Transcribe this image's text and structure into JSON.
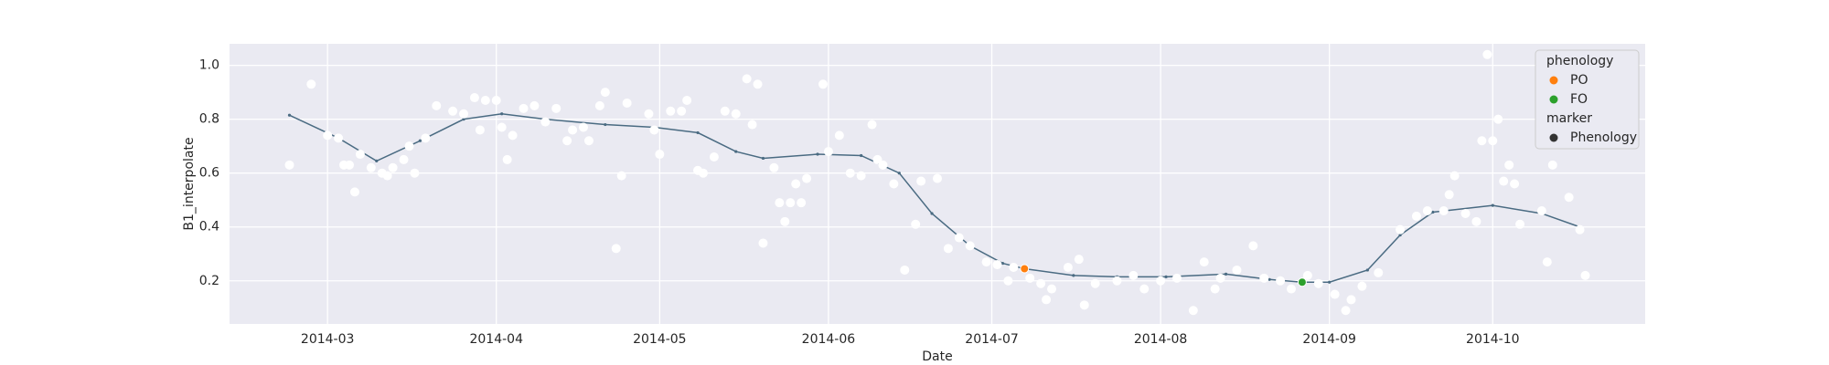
{
  "chart_data": {
    "type": "scatter",
    "x_label": "Date",
    "y_label": "B1_interpolate",
    "xlim": [
      42,
      302
    ],
    "xticks": [
      {
        "value": 60,
        "label": "2014-03"
      },
      {
        "value": 91,
        "label": "2014-04"
      },
      {
        "value": 121,
        "label": "2014-05"
      },
      {
        "value": 152,
        "label": "2014-06"
      },
      {
        "value": 182,
        "label": "2014-07"
      },
      {
        "value": 213,
        "label": "2014-08"
      },
      {
        "value": 244,
        "label": "2014-09"
      },
      {
        "value": 274,
        "label": "2014-10"
      }
    ],
    "ylim": [
      0.04,
      1.08
    ],
    "yticks": [
      0.2,
      0.4,
      0.6,
      0.8,
      {
        "value": 1,
        "label": "1.0"
      }
    ],
    "grid": true,
    "series": [
      {
        "type": "scatter",
        "color": "#ffffff",
        "x": [
          53,
          57,
          60,
          62,
          63,
          64,
          65,
          66,
          68,
          70,
          71,
          72,
          74,
          75,
          76,
          78,
          80,
          83,
          85,
          87,
          88,
          89,
          91,
          92,
          93,
          94,
          96,
          98,
          100,
          102,
          104,
          105,
          107,
          108,
          110,
          111,
          113,
          114,
          115,
          119,
          120,
          121,
          123,
          125,
          126,
          128,
          129,
          131,
          133,
          135,
          137,
          138,
          139,
          140,
          142,
          143,
          144,
          145,
          146,
          147,
          148,
          151,
          152,
          154,
          156,
          158,
          160,
          161,
          162,
          164,
          166,
          168,
          169,
          172,
          174,
          176,
          178,
          181,
          183,
          185,
          186,
          189,
          191,
          192,
          193,
          196,
          198,
          199,
          201,
          205,
          208,
          210,
          213,
          216,
          219,
          221,
          223,
          224,
          227,
          230,
          232,
          235,
          237,
          240,
          242,
          245,
          247,
          248,
          250,
          253,
          257,
          260,
          262,
          265,
          266,
          267,
          269,
          271,
          272,
          273,
          274,
          275,
          276,
          277,
          278,
          279,
          283,
          284,
          285,
          288,
          290,
          291
        ],
        "values": [
          0.63,
          0.93,
          0.74,
          0.73,
          0.63,
          0.63,
          0.53,
          0.67,
          0.62,
          0.6,
          0.59,
          0.62,
          0.65,
          0.7,
          0.6,
          0.73,
          0.85,
          0.83,
          0.82,
          0.88,
          0.76,
          0.87,
          0.87,
          0.77,
          0.65,
          0.74,
          0.84,
          0.85,
          0.79,
          0.84,
          0.72,
          0.76,
          0.77,
          0.72,
          0.85,
          0.9,
          0.32,
          0.59,
          0.86,
          0.82,
          0.76,
          0.67,
          0.83,
          0.83,
          0.87,
          0.61,
          0.6,
          0.66,
          0.83,
          0.82,
          0.95,
          0.78,
          0.93,
          0.34,
          0.62,
          0.49,
          0.42,
          0.49,
          0.56,
          0.49,
          0.58,
          0.93,
          0.68,
          0.74,
          0.6,
          0.59,
          0.78,
          0.65,
          0.63,
          0.56,
          0.24,
          0.41,
          0.57,
          0.58,
          0.32,
          0.36,
          0.33,
          0.27,
          0.26,
          0.2,
          0.25,
          0.21,
          0.19,
          0.13,
          0.17,
          0.25,
          0.28,
          0.11,
          0.19,
          0.2,
          0.22,
          0.17,
          0.2,
          0.21,
          0.09,
          0.27,
          0.17,
          0.21,
          0.24,
          0.33,
          0.21,
          0.2,
          0.17,
          0.22,
          0.19,
          0.15,
          0.09,
          0.13,
          0.18,
          0.23,
          0.39,
          0.44,
          0.46,
          0.46,
          0.52,
          0.59,
          0.45,
          0.42,
          0.72,
          1.04,
          0.72,
          0.8,
          0.57,
          0.63,
          0.56,
          0.41,
          0.46,
          0.27,
          0.63,
          0.51,
          0.39,
          0.22
        ]
      },
      {
        "type": "line",
        "color": "#4a6b82",
        "x": [
          53,
          62,
          69,
          77,
          85,
          92,
          100,
          111,
          120,
          128,
          135,
          140,
          150,
          158,
          165,
          171,
          178,
          184,
          188,
          197,
          205,
          214,
          225,
          233,
          239,
          244,
          251,
          257,
          263,
          274,
          283,
          290
        ],
        "values": [
          0.815,
          0.73,
          0.645,
          0.72,
          0.8,
          0.82,
          0.8,
          0.78,
          0.77,
          0.75,
          0.68,
          0.655,
          0.67,
          0.665,
          0.6,
          0.45,
          0.33,
          0.265,
          0.245,
          0.22,
          0.215,
          0.215,
          0.225,
          0.205,
          0.195,
          0.195,
          0.24,
          0.37,
          0.455,
          0.48,
          0.45,
          0.4
        ]
      },
      {
        "type": "scatter",
        "name": "PO",
        "color": "#ff7f0e",
        "x": [
          188
        ],
        "values": [
          0.245
        ]
      },
      {
        "type": "scatter",
        "name": "FO",
        "color": "#2ca02c",
        "x": [
          239
        ],
        "values": [
          0.195
        ]
      }
    ],
    "legend": {
      "corner": "upper right",
      "title": "phenology",
      "marker_title": "marker",
      "marker_entry": "Phenology",
      "marker_color": "#333333"
    }
  }
}
